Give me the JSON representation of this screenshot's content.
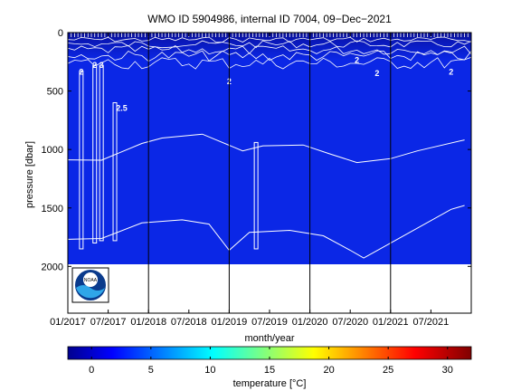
{
  "chart_data": {
    "type": "heatmap",
    "title": "WMO ID 5904986, internal ID 7004, 09−Dec−2021",
    "xlabel": "month/year",
    "ylabel": "pressure [dbar]",
    "colorbar_label": "temperature [°C]",
    "x_ticks": [
      "01/2017",
      "07/2017",
      "01/2018",
      "07/2018",
      "01/2019",
      "07/2019",
      "01/2020",
      "07/2020",
      "01/2021",
      "07/2021"
    ],
    "year_boundaries": [
      "01/2018",
      "01/2019",
      "01/2020",
      "01/2021"
    ],
    "x_range": [
      "01/2017",
      "12/2021"
    ],
    "y_ticks": [
      0,
      500,
      1000,
      1500,
      2000
    ],
    "y_range": [
      0,
      2400
    ],
    "y_inverted": true,
    "data_depth_limit": 2000,
    "colorbar_ticks": [
      0,
      5,
      10,
      15,
      20,
      25,
      30
    ],
    "colorbar_range": [
      -2,
      32
    ],
    "colormap": "jet",
    "colors": {
      "deep_fill": "#0b27e6",
      "surface_fill": "#0a12a8",
      "contour": "#ffffff",
      "axis": "#000000"
    },
    "contour_labels": [
      {
        "text": "2",
        "x": "03/2017",
        "y": 360
      },
      {
        "text": "2",
        "x": "05/2017",
        "y": 300
      },
      {
        "text": "3",
        "x": "06/2017",
        "y": 300
      },
      {
        "text": "2.5",
        "x": "09/2017",
        "y": 670
      },
      {
        "text": "2",
        "x": "01/2019",
        "y": 440
      },
      {
        "text": "2",
        "x": "08/2020",
        "y": 260
      },
      {
        "text": "2",
        "x": "11/2020",
        "y": 370
      },
      {
        "text": "2",
        "x": "10/2021",
        "y": 360
      }
    ],
    "contour_lines": [
      {
        "name": "~2.5 isotherm",
        "points": [
          [
            "01/2017",
            1100
          ],
          [
            "06/2017",
            1080
          ],
          [
            "12/2017",
            960
          ],
          [
            "03/2018",
            890
          ],
          [
            "09/2018",
            880
          ],
          [
            "03/2019",
            1000
          ],
          [
            "06/2019",
            980
          ],
          [
            "12/2019",
            950
          ],
          [
            "04/2020",
            1050
          ],
          [
            "08/2020",
            1100
          ],
          [
            "01/2021",
            1090
          ],
          [
            "05/2021",
            1000
          ],
          [
            "12/2021",
            930
          ]
        ]
      },
      {
        "name": "~2.2 isotherm",
        "points": [
          [
            "01/2017",
            1780
          ],
          [
            "06/2017",
            1750
          ],
          [
            "12/2017",
            1640
          ],
          [
            "06/2018",
            1590
          ],
          [
            "10/2018",
            1650
          ],
          [
            "01/2019",
            1850
          ],
          [
            "04/2019",
            1720
          ],
          [
            "10/2019",
            1680
          ],
          [
            "03/2020",
            1750
          ],
          [
            "07/2020",
            1850
          ],
          [
            "09/2020",
            1940
          ],
          [
            "10/2021",
            1500
          ],
          [
            "12/2021",
            1490
          ]
        ]
      }
    ],
    "logo_alt": "NOAA"
  }
}
